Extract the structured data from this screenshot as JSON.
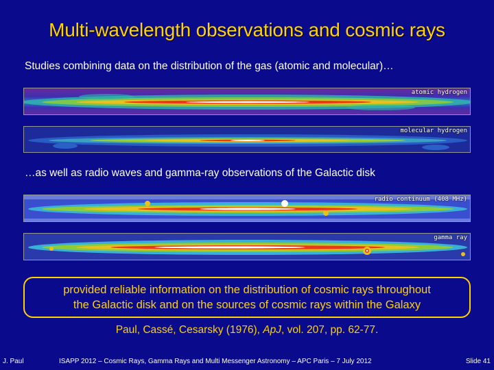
{
  "slide": {
    "title": "Multi-wavelength observations and cosmic rays",
    "intro_text": "Studies combining data on the distribution of the gas (atomic and molecular)…",
    "maps_top": [
      {
        "label": "atomic hydrogen",
        "icon": "galactic-map-image"
      },
      {
        "label": "molecular hydrogen",
        "icon": "galactic-map-image"
      }
    ],
    "middle_text": "…as well as radio waves and gamma-ray observations of the Galactic disk",
    "maps_bottom": [
      {
        "label": "radio continuum (408 MHz)",
        "icon": "galactic-map-image"
      },
      {
        "label": "gamma ray",
        "icon": "galactic-map-image"
      }
    ],
    "conclusion_line1": "provided reliable information on the distribution of cosmic rays throughout",
    "conclusion_line2": "the Galactic disk and on the sources of cosmic rays within the Galaxy",
    "reference": {
      "authors": "Paul, Cassé, Cesarsky (1976), ",
      "journal": "ApJ",
      "rest": ", vol. 207, pp. 62-77."
    }
  },
  "footer": {
    "author": "J. Paul",
    "event": "ISAPP 2012 – Cosmic Rays, Gamma Rays and Multi Messenger Astronomy  – APC Paris – 7 July 2012",
    "slide_number": "Slide 41"
  },
  "colors": {
    "background": "#0a0a8c",
    "accent": "#ffd200",
    "text": "#ffffff"
  }
}
